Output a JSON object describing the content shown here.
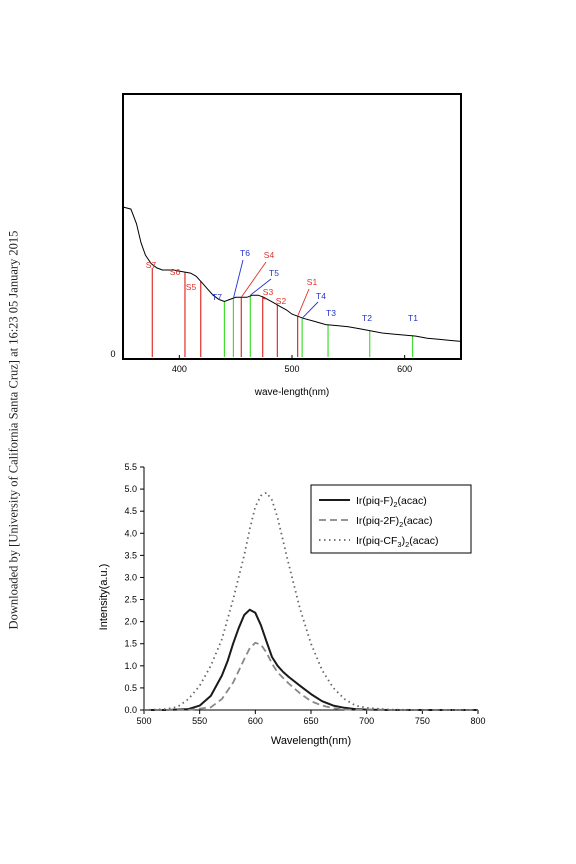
{
  "side_note": "Downloaded by [University of California Santa Cruz] at 16:23 05 January 2015",
  "chart_data": [
    {
      "type": "line",
      "xlabel": "wave-length(nm)",
      "xlim": [
        350,
        650
      ],
      "x_ticks": [
        400,
        500,
        600
      ],
      "y_ticks": [
        0
      ],
      "absorption": {
        "x": [
          350,
          357,
          362,
          366,
          370,
          375,
          380,
          385,
          390,
          395,
          400,
          405,
          410,
          415,
          420,
          425,
          430,
          435,
          440,
          445,
          450,
          455,
          460,
          465,
          470,
          475,
          480,
          485,
          490,
          495,
          500,
          510,
          520,
          530,
          540,
          550,
          560,
          570,
          580,
          590,
          600,
          610,
          620,
          630,
          640,
          650
        ],
        "y": [
          0.7,
          0.69,
          0.62,
          0.53,
          0.47,
          0.43,
          0.41,
          0.4,
          0.4,
          0.4,
          0.395,
          0.39,
          0.385,
          0.37,
          0.34,
          0.31,
          0.28,
          0.26,
          0.25,
          0.26,
          0.27,
          0.27,
          0.27,
          0.28,
          0.28,
          0.27,
          0.255,
          0.24,
          0.225,
          0.21,
          0.19,
          0.17,
          0.155,
          0.14,
          0.135,
          0.13,
          0.12,
          0.11,
          0.1,
          0.095,
          0.09,
          0.085,
          0.075,
          0.07,
          0.065,
          0.06
        ]
      },
      "singlet_lines": [
        {
          "label": "S7",
          "x": 376,
          "y": 0.41
        },
        {
          "label": "S6",
          "x": 405,
          "y": 0.39
        },
        {
          "label": "S5",
          "x": 419,
          "y": 0.345
        },
        {
          "label": "S4",
          "x": 455,
          "y": 0.27
        },
        {
          "label": "S3",
          "x": 474,
          "y": 0.275
        },
        {
          "label": "S2",
          "x": 487,
          "y": 0.235
        },
        {
          "label": "S1",
          "x": 505,
          "y": 0.18
        }
      ],
      "triplet_lines": [
        {
          "label": "T7",
          "x": 440,
          "y": 0.25
        },
        {
          "label": "T6",
          "x": 448,
          "y": 0.265
        },
        {
          "label": "T5",
          "x": 463,
          "y": 0.28
        },
        {
          "label": "T4",
          "x": 509,
          "y": 0.17
        },
        {
          "label": "T3",
          "x": 532,
          "y": 0.14
        },
        {
          "label": "T2",
          "x": 569,
          "y": 0.11
        },
        {
          "label": "T1",
          "x": 607,
          "y": 0.09
        }
      ],
      "colors": {
        "singlet": "#e0302a",
        "triplet": "#44dd33",
        "label_blue": "#2233cc",
        "curve": "#000000"
      }
    },
    {
      "type": "line",
      "xlabel": "Wavelength(nm)",
      "ylabel": "Intensity(a.u.)",
      "xlim": [
        500,
        800
      ],
      "ylim": [
        0,
        5.5
      ],
      "x_ticks": [
        "500",
        "550",
        "600",
        "650",
        "700",
        "750",
        "800"
      ],
      "y_ticks": [
        "0.0",
        "0.5",
        "1.0",
        "1.5",
        "2.0",
        "2.5",
        "3.0",
        "3.5",
        "4.0",
        "4.5",
        "5.0",
        "5.5"
      ],
      "legend": {
        "placement": "top-right"
      },
      "series": [
        {
          "name_main": "Ir(piq-F)",
          "name_sub": "2",
          "name_tail": "(acac)",
          "style": "solid",
          "x": [
            500,
            520,
            540,
            550,
            560,
            570,
            575,
            580,
            585,
            590,
            595,
            600,
            605,
            610,
            615,
            620,
            625,
            630,
            640,
            650,
            660,
            670,
            680,
            690,
            700,
            720,
            750,
            800
          ],
          "y": [
            0,
            0,
            0.02,
            0.1,
            0.32,
            0.78,
            1.1,
            1.5,
            1.85,
            2.15,
            2.27,
            2.2,
            1.92,
            1.55,
            1.2,
            1.0,
            0.86,
            0.75,
            0.55,
            0.36,
            0.2,
            0.1,
            0.05,
            0.02,
            0.01,
            0,
            0,
            0
          ]
        },
        {
          "name_main": "Ir(piq-2F)",
          "name_sub": "2",
          "name_tail": "(acac)",
          "style": "dashed",
          "x": [
            500,
            540,
            560,
            570,
            580,
            585,
            590,
            595,
            600,
            605,
            610,
            615,
            620,
            630,
            640,
            650,
            660,
            670,
            680,
            700,
            800
          ],
          "y": [
            0,
            0,
            0.06,
            0.25,
            0.62,
            0.88,
            1.15,
            1.4,
            1.52,
            1.48,
            1.3,
            1.05,
            0.85,
            0.6,
            0.38,
            0.2,
            0.1,
            0.04,
            0.01,
            0,
            0
          ]
        },
        {
          "name_main": "Ir(piq-CF",
          "name_sub": "3",
          "name_tail": ")",
          "name_sub2": "2",
          "name_end": "(acac)",
          "style": "dotted",
          "x": [
            500,
            520,
            530,
            540,
            550,
            560,
            570,
            580,
            590,
            595,
            600,
            605,
            610,
            615,
            620,
            630,
            640,
            650,
            660,
            670,
            680,
            690,
            700,
            720,
            750,
            800
          ],
          "y": [
            0,
            0.02,
            0.07,
            0.25,
            0.55,
            1.0,
            1.6,
            2.5,
            3.5,
            4.1,
            4.6,
            4.85,
            4.92,
            4.75,
            4.35,
            3.3,
            2.3,
            1.5,
            0.9,
            0.5,
            0.25,
            0.1,
            0.05,
            0.01,
            0,
            0
          ]
        }
      ]
    }
  ]
}
